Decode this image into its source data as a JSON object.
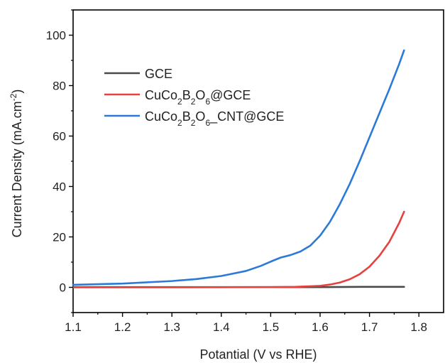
{
  "chart_data": {
    "type": "line",
    "xlabel": "Potantial (V vs RHE)",
    "ylabel_main": "Current Density (mA.cm",
    "ylabel_sup": "-2",
    "ylabel_close": ")",
    "xlim": [
      1.1,
      1.85
    ],
    "ylim": [
      -10,
      110
    ],
    "x_ticks": [
      1.1,
      1.2,
      1.3,
      1.4,
      1.5,
      1.6,
      1.7,
      1.8
    ],
    "x_tick_labels": [
      "1.1",
      "1.2",
      "1.3",
      "1.4",
      "1.5",
      "1.6",
      "1.7",
      "1.8"
    ],
    "y_ticks": [
      0,
      20,
      40,
      60,
      80,
      100
    ],
    "y_tick_labels": [
      "0",
      "20",
      "40",
      "60",
      "80",
      "100"
    ],
    "grid": false,
    "legend_position": "top-left",
    "series": [
      {
        "name": "GCE",
        "legend_parts": [
          {
            "t": "GCE",
            "s": ""
          }
        ],
        "color": "#4a4a4a",
        "x": [
          1.1,
          1.2,
          1.3,
          1.4,
          1.5,
          1.6,
          1.7,
          1.77
        ],
        "y": [
          0.1,
          0.1,
          0.1,
          0.1,
          0.1,
          0.1,
          0.2,
          0.2
        ]
      },
      {
        "name": "CuCo2B2O6@GCE",
        "legend_parts": [
          {
            "t": "CuCo",
            "s": ""
          },
          {
            "t": "2",
            "s": "sub"
          },
          {
            "t": "B",
            "s": ""
          },
          {
            "t": "2",
            "s": "sub"
          },
          {
            "t": "O",
            "s": ""
          },
          {
            "t": "6",
            "s": "sub"
          },
          {
            "t": "@GCE",
            "s": ""
          }
        ],
        "color": "#e8403f",
        "x": [
          1.1,
          1.3,
          1.5,
          1.55,
          1.6,
          1.62,
          1.64,
          1.66,
          1.68,
          1.7,
          1.72,
          1.74,
          1.76,
          1.77
        ],
        "y": [
          0,
          0,
          0.1,
          0.2,
          0.6,
          1.1,
          1.9,
          3.2,
          5.2,
          8.2,
          12.5,
          18,
          25.5,
          30
        ]
      },
      {
        "name": "CuCo2B2O6_CNT@GCE",
        "legend_parts": [
          {
            "t": "CuCo",
            "s": ""
          },
          {
            "t": "2",
            "s": "sub"
          },
          {
            "t": "B",
            "s": ""
          },
          {
            "t": "2",
            "s": "sub"
          },
          {
            "t": "O",
            "s": ""
          },
          {
            "t": "6",
            "s": "sub"
          },
          {
            "t": "_CNT@GCE",
            "s": ""
          }
        ],
        "color": "#2b7ad9",
        "x": [
          1.1,
          1.2,
          1.3,
          1.35,
          1.4,
          1.45,
          1.48,
          1.5,
          1.52,
          1.54,
          1.56,
          1.58,
          1.6,
          1.62,
          1.64,
          1.66,
          1.68,
          1.7,
          1.72,
          1.74,
          1.76,
          1.77
        ],
        "y": [
          1,
          1.5,
          2.5,
          3.3,
          4.5,
          6.5,
          8.5,
          10.2,
          11.8,
          12.8,
          14.2,
          16.5,
          20.5,
          26,
          33,
          41,
          50,
          59.5,
          69,
          78.5,
          88.5,
          94
        ]
      }
    ]
  }
}
